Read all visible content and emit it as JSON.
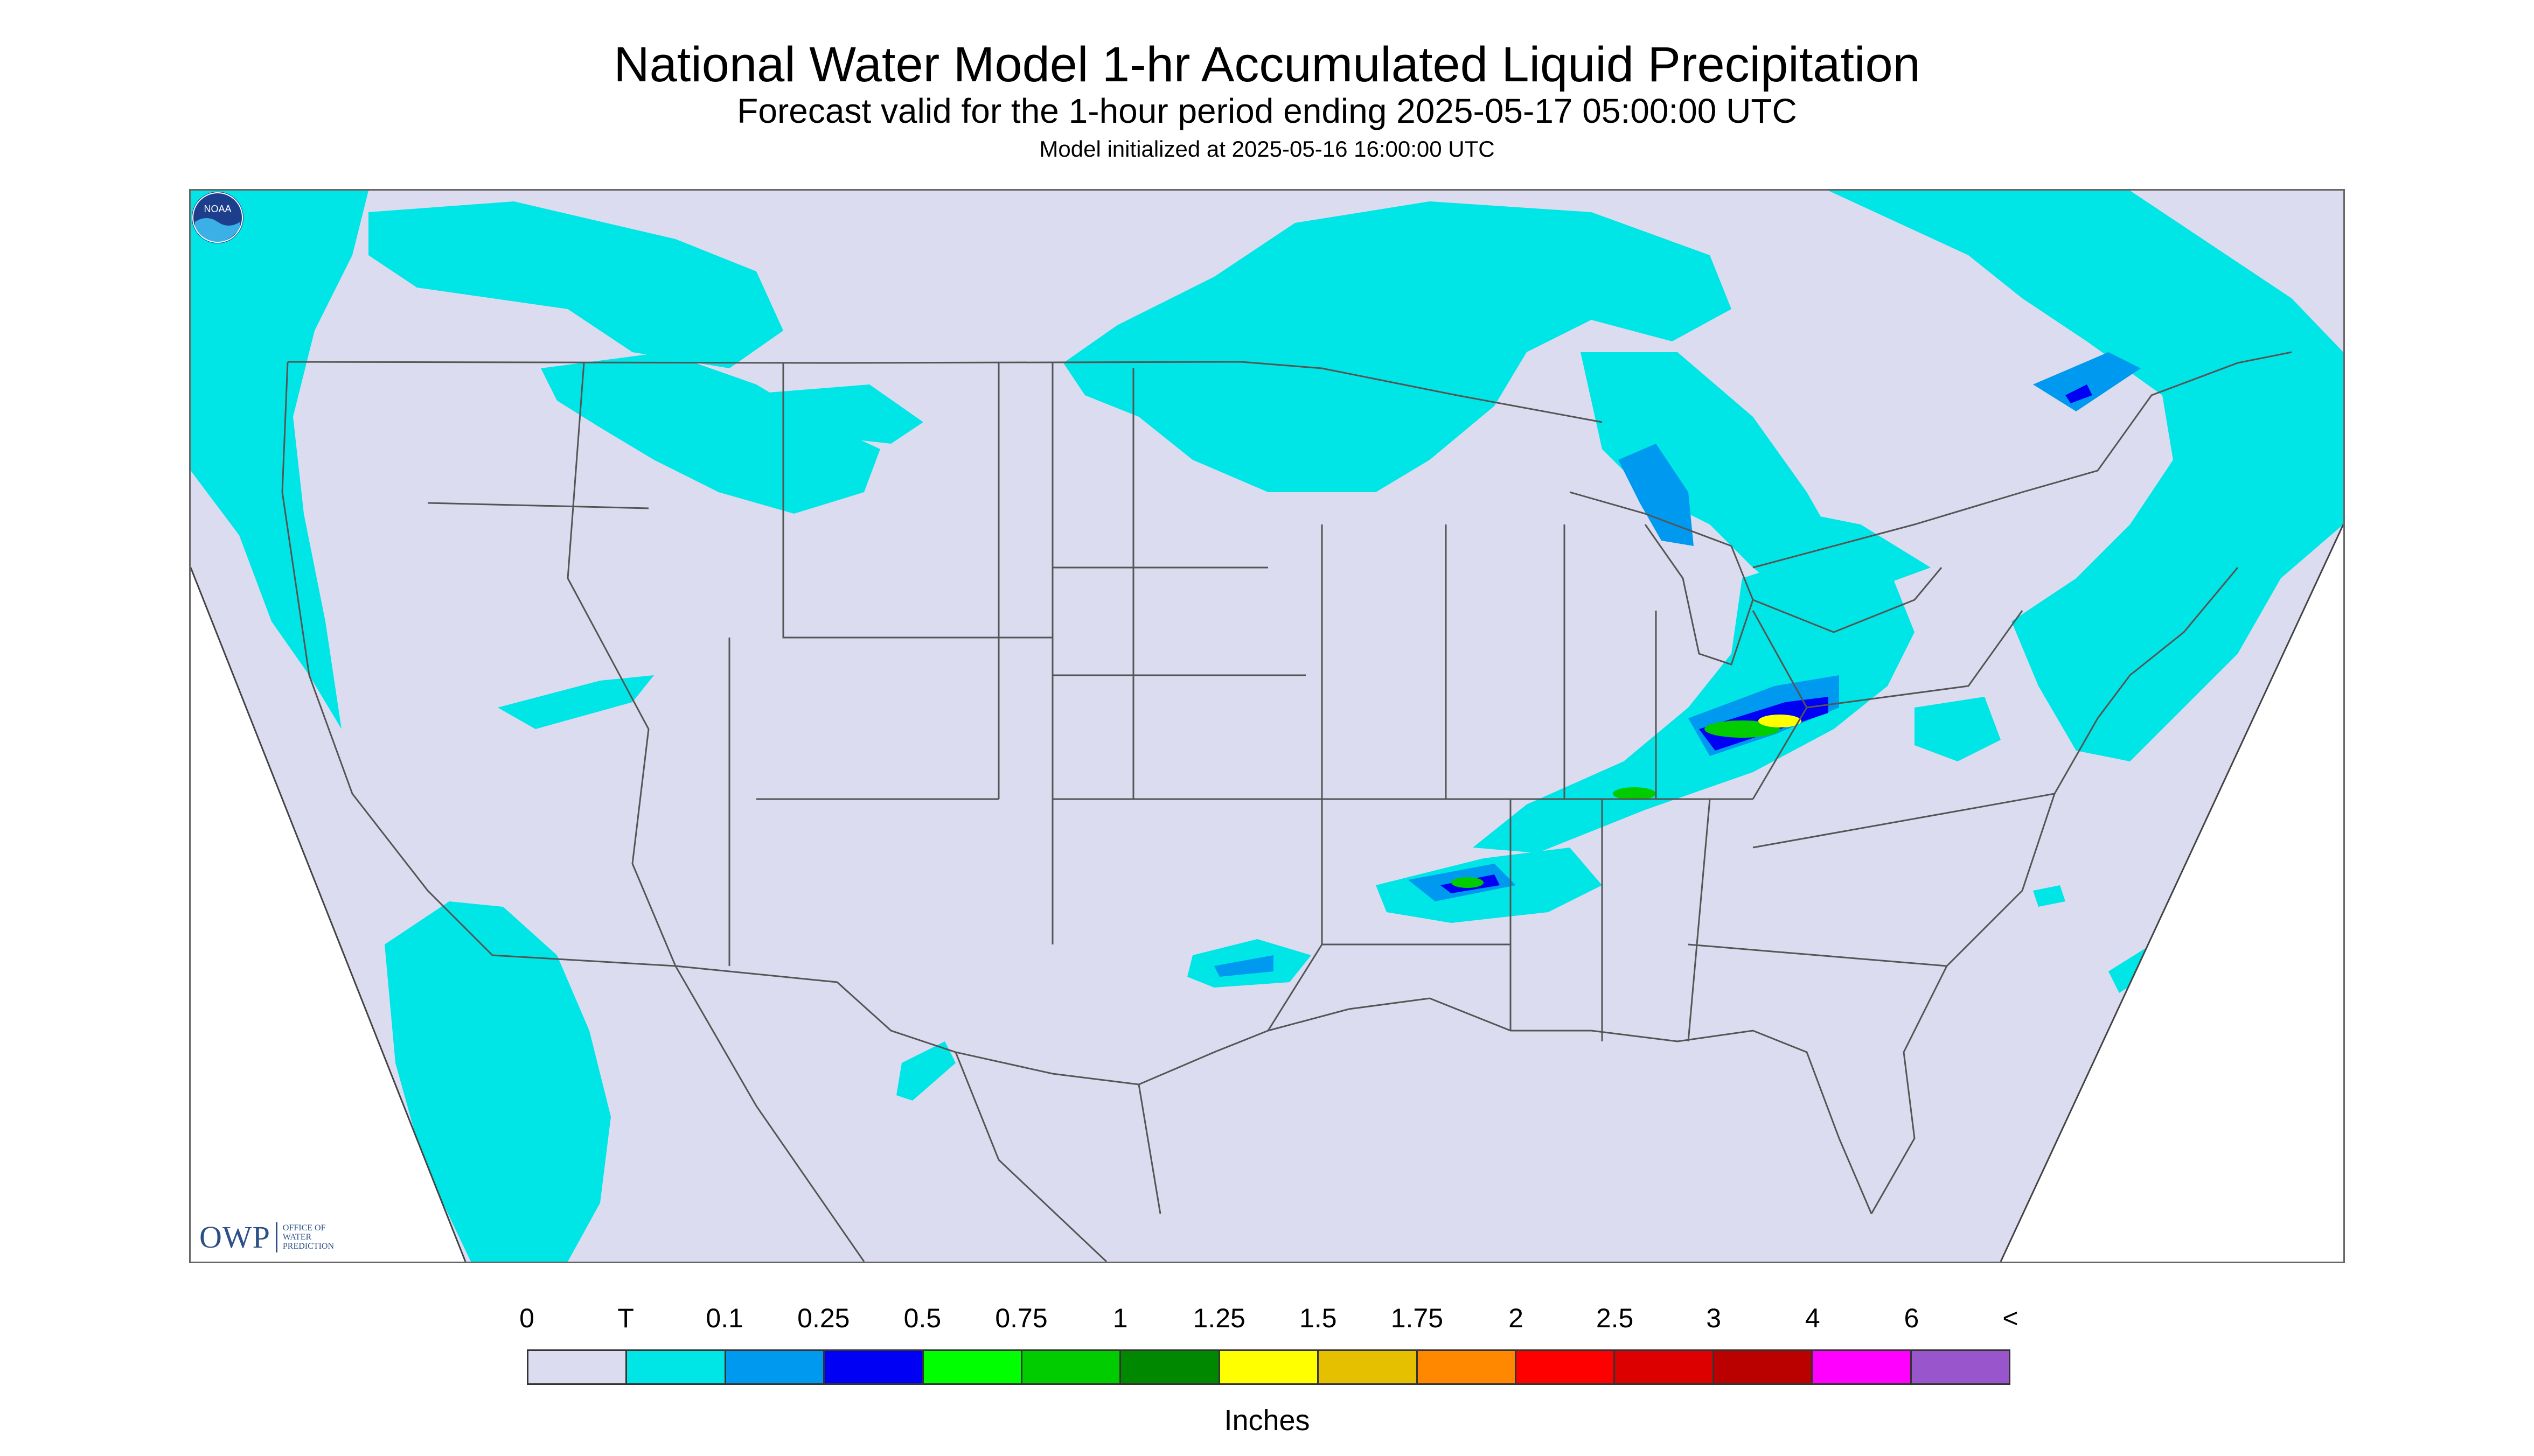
{
  "header": {
    "title": "National Water Model 1-hr Accumulated Liquid Precipitation",
    "subtitle": "Forecast valid for the 1-hour period ending 2025-05-17 05:00:00 UTC",
    "init": "Model initialized at 2025-05-16 16:00:00 UTC"
  },
  "logos": {
    "owp_mark": "OWP",
    "owp_text": "OFFICE OF WATER PREDICTION",
    "noaa_text": "NOAA",
    "noaa_icon": "noaa-logo-icon"
  },
  "colors": {
    "background_land": "#dcdcf0",
    "outside_domain": "#ffffff",
    "boundaries": "#555555"
  },
  "legend": {
    "labels": [
      "0",
      "T",
      "0.1",
      "0.25",
      "0.5",
      "0.75",
      "1",
      "1.25",
      "1.5",
      "1.75",
      "2",
      "2.5",
      "3",
      "4",
      "6",
      "<"
    ],
    "colors": [
      "#dcdcf0",
      "#00e5e5",
      "#0099f0",
      "#0000f5",
      "#00ff00",
      "#00cc00",
      "#008800",
      "#ffff00",
      "#e5c000",
      "#ff8800",
      "#ff0000",
      "#dd0000",
      "#bb0000",
      "#ff00ff",
      "#9955cc"
    ],
    "units": "Inches"
  }
}
